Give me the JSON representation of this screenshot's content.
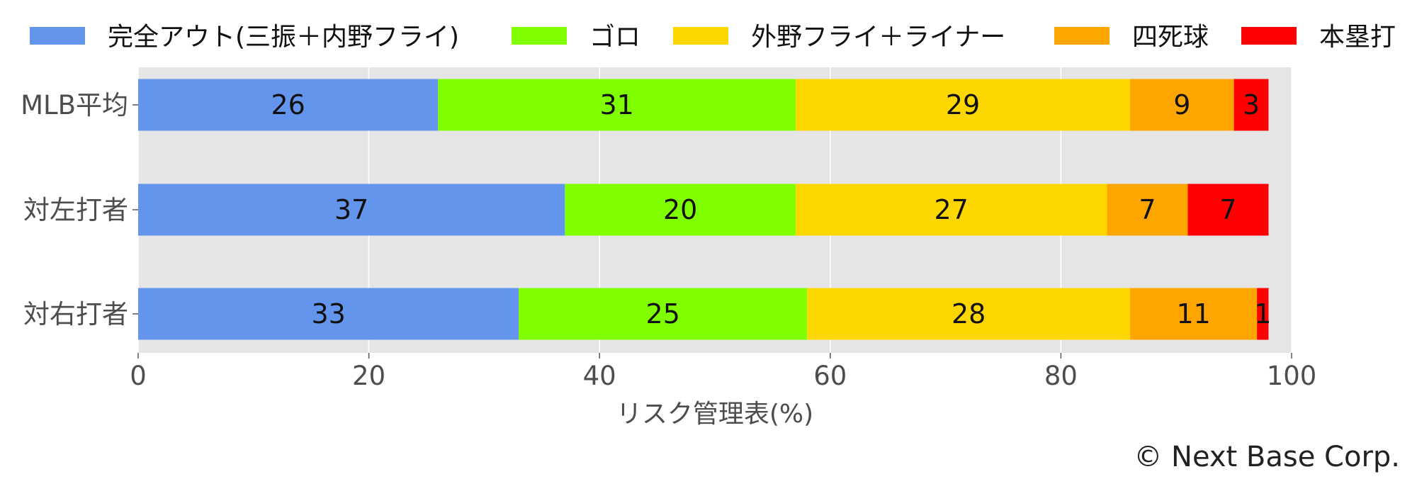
{
  "chart_data": {
    "type": "bar",
    "orientation": "horizontal",
    "stacked": true,
    "categories": [
      "MLB平均",
      "対左打者",
      "対右打者"
    ],
    "series": [
      {
        "name": "完全アウト(三振＋内野フライ)",
        "color": "#6495ed",
        "values": [
          26,
          37,
          33
        ]
      },
      {
        "name": "ゴロ",
        "color": "#7fff00",
        "values": [
          31,
          20,
          25
        ]
      },
      {
        "name": "外野フライ＋ライナー",
        "color": "#ffd700",
        "values": [
          29,
          27,
          28
        ]
      },
      {
        "name": "四死球",
        "color": "#ffa500",
        "values": [
          9,
          7,
          11
        ]
      },
      {
        "name": "本塁打",
        "color": "#ff0000",
        "values": [
          3,
          7,
          1
        ]
      }
    ],
    "bar_labels": [
      [
        "26",
        "31",
        "29",
        "9",
        "3"
      ],
      [
        "37",
        "20",
        "27",
        "7",
        "7"
      ],
      [
        "33",
        "25",
        "28",
        "11",
        "1"
      ]
    ],
    "xlabel": "リスク管理表(%)",
    "xlim": [
      0,
      100
    ],
    "xticks": [
      0,
      20,
      40,
      60,
      80,
      100
    ],
    "xtick_labels": [
      "0",
      "20",
      "40",
      "60",
      "80",
      "100"
    ],
    "grid": true,
    "legend_position": "top"
  },
  "credit": "© Next Base Corp."
}
